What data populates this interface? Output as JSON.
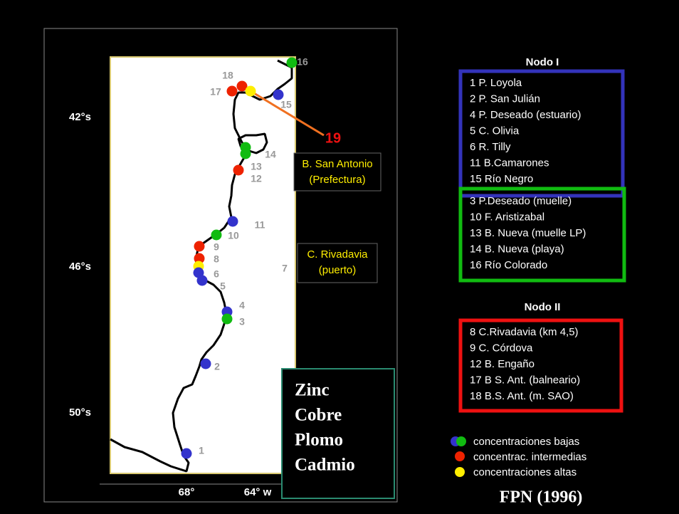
{
  "map": {
    "latitude_labels": [
      "42°s",
      "46°s",
      "50°s"
    ],
    "longitude_labels": [
      "68°",
      "64° w"
    ],
    "station_labels": [
      "16",
      "18",
      "17",
      "15",
      "14",
      "13",
      "12",
      "11",
      "10",
      "9",
      "8",
      "6",
      "5",
      "4",
      "3",
      "2",
      "1",
      "7"
    ],
    "highlight_label": "19",
    "place_boxes": [
      {
        "lines": [
          "B. San Antonio",
          "(Prefectura)"
        ]
      },
      {
        "lines": [
          "C. Rivadavia",
          "(puerto)"
        ]
      }
    ],
    "metals": [
      "Zinc",
      "Cobre",
      "Plomo",
      "Cadmio"
    ]
  },
  "nodes": [
    {
      "title": "Nodo I",
      "groups": [
        [
          "1 P. Loyola",
          "2 P. San Julián",
          "4 P. Deseado (estuario)",
          "5 C. Olivia",
          "6 R. Tilly",
          "11 B.Camarones",
          "15 Río Negro"
        ],
        [
          "3 P.Deseado (muelle)",
          "10 F. Aristizabal",
          "13 B. Nueva (muelle LP)",
          "14 B. Nueva (playa)",
          "16 Río Colorado"
        ]
      ]
    },
    {
      "title": "Nodo II",
      "groups": [
        [
          "8 C.Rivadavia (km 4,5)",
          "9 C. Córdova",
          "12 B. Engaño",
          "17 B S. Ant. (balneario)",
          "18 B.S. Ant. (m. SAO)"
        ]
      ]
    }
  ],
  "legend": [
    "concentraciones bajas",
    "concentrac. intermedias",
    "concentraciones altas"
  ],
  "footer": "FPN (1996)"
}
